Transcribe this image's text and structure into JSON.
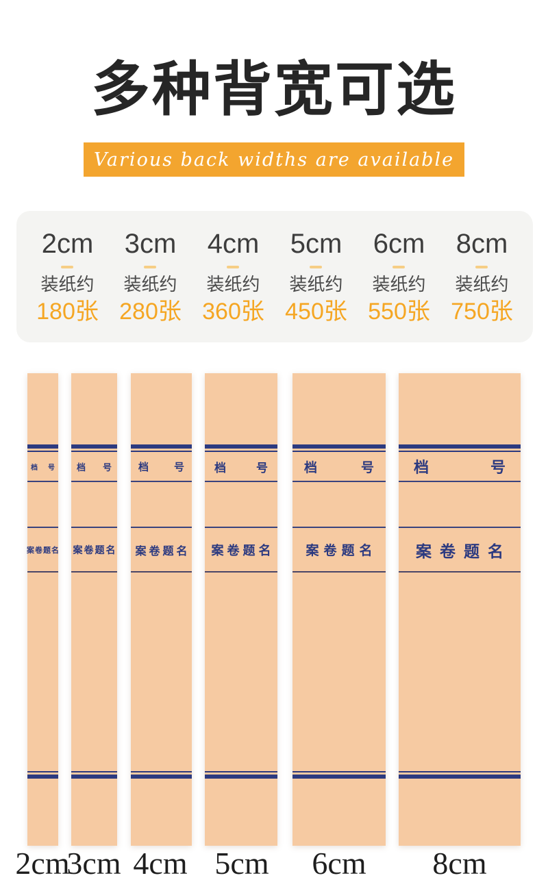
{
  "header": {
    "title": "多种背宽可选",
    "subtitle": "Various back widths are available"
  },
  "colors": {
    "ribbon_orange": "#F3A52F",
    "accent_orange": "#F5A623",
    "paper_kraft": "#F6CAA2",
    "ink_navy": "#2C3A80",
    "card_background": "#F4F4F2"
  },
  "size_card": {
    "capacity_label": "装纸约",
    "items": [
      {
        "size": "2cm",
        "sheets": "180张"
      },
      {
        "size": "3cm",
        "sheets": "280张"
      },
      {
        "size": "4cm",
        "sheets": "360张"
      },
      {
        "size": "5cm",
        "sheets": "450张"
      },
      {
        "size": "6cm",
        "sheets": "550张"
      },
      {
        "size": "8cm",
        "sheets": "750张"
      }
    ]
  },
  "spines": {
    "file_number_left": "档",
    "file_number_right": "号",
    "case_title": "案卷题名",
    "items": [
      {
        "size": "2cm"
      },
      {
        "size": "3cm"
      },
      {
        "size": "4cm"
      },
      {
        "size": "5cm"
      },
      {
        "size": "6cm"
      },
      {
        "size": "8cm"
      }
    ]
  }
}
